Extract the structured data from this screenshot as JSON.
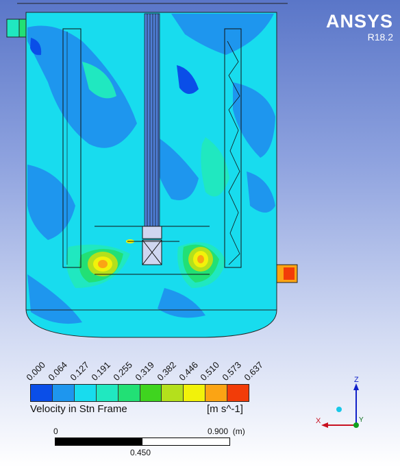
{
  "brand": {
    "name": "ANSYS",
    "version": "R18.2"
  },
  "legend": {
    "ticks": [
      "0.000",
      "0.064",
      "0.127",
      "0.191",
      "0.255",
      "0.319",
      "0.382",
      "0.446",
      "0.510",
      "0.573",
      "0.637"
    ],
    "colors": [
      "#0a4ee8",
      "#1e96ee",
      "#18dcee",
      "#20e8c0",
      "#22e075",
      "#3fd41f",
      "#b4e01c",
      "#f2f20a",
      "#fba414",
      "#f23c08"
    ],
    "variable": "Velocity in Stn Frame",
    "units": "[m s^-1]"
  },
  "scale": {
    "start": "0",
    "end": "0.900",
    "unit": "(m)",
    "mid": "0.450"
  },
  "triad": {
    "x": "X",
    "y": "Y",
    "z": "Z"
  },
  "field_colors": {
    "base": "#18dcee",
    "low": "#1e96ee",
    "lowest": "#0a4ee8",
    "mid": "#20e8c0",
    "green": "#22e075",
    "yellowgreen": "#b4e01c",
    "yellow": "#f2f20a",
    "orange": "#fba414",
    "red": "#f23c08"
  }
}
